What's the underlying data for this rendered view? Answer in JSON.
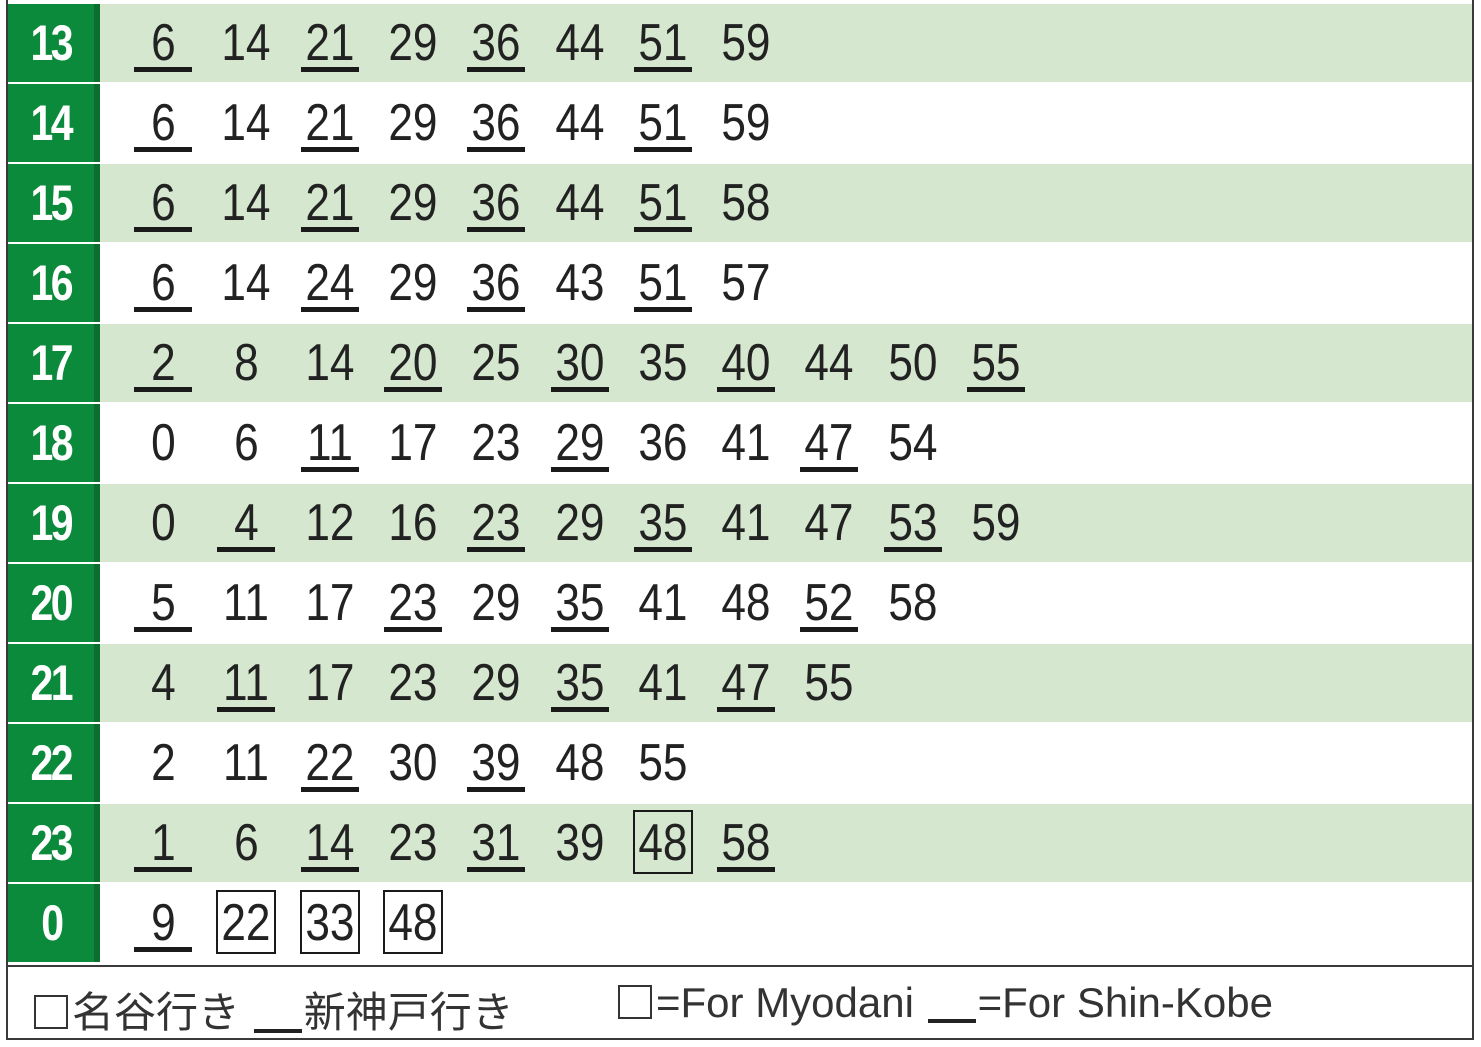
{
  "colors": {
    "hour_bg": "#0a8a3a",
    "shaded_row": "#d5e8cf",
    "text": "#222222"
  },
  "rows": [
    {
      "hour": "13",
      "minutes": [
        {
          "m": "6",
          "dest": "shinkobe"
        },
        {
          "m": "14",
          "dest": ""
        },
        {
          "m": "21",
          "dest": "shinkobe"
        },
        {
          "m": "29",
          "dest": ""
        },
        {
          "m": "36",
          "dest": "shinkobe"
        },
        {
          "m": "44",
          "dest": ""
        },
        {
          "m": "51",
          "dest": "shinkobe"
        },
        {
          "m": "59",
          "dest": ""
        }
      ]
    },
    {
      "hour": "14",
      "minutes": [
        {
          "m": "6",
          "dest": "shinkobe"
        },
        {
          "m": "14",
          "dest": ""
        },
        {
          "m": "21",
          "dest": "shinkobe"
        },
        {
          "m": "29",
          "dest": ""
        },
        {
          "m": "36",
          "dest": "shinkobe"
        },
        {
          "m": "44",
          "dest": ""
        },
        {
          "m": "51",
          "dest": "shinkobe"
        },
        {
          "m": "59",
          "dest": ""
        }
      ]
    },
    {
      "hour": "15",
      "minutes": [
        {
          "m": "6",
          "dest": "shinkobe"
        },
        {
          "m": "14",
          "dest": ""
        },
        {
          "m": "21",
          "dest": "shinkobe"
        },
        {
          "m": "29",
          "dest": ""
        },
        {
          "m": "36",
          "dest": "shinkobe"
        },
        {
          "m": "44",
          "dest": ""
        },
        {
          "m": "51",
          "dest": "shinkobe"
        },
        {
          "m": "58",
          "dest": ""
        }
      ]
    },
    {
      "hour": "16",
      "minutes": [
        {
          "m": "6",
          "dest": "shinkobe"
        },
        {
          "m": "14",
          "dest": ""
        },
        {
          "m": "24",
          "dest": "shinkobe"
        },
        {
          "m": "29",
          "dest": ""
        },
        {
          "m": "36",
          "dest": "shinkobe"
        },
        {
          "m": "43",
          "dest": ""
        },
        {
          "m": "51",
          "dest": "shinkobe"
        },
        {
          "m": "57",
          "dest": ""
        }
      ]
    },
    {
      "hour": "17",
      "minutes": [
        {
          "m": "2",
          "dest": "shinkobe"
        },
        {
          "m": "8",
          "dest": ""
        },
        {
          "m": "14",
          "dest": ""
        },
        {
          "m": "20",
          "dest": "shinkobe"
        },
        {
          "m": "25",
          "dest": ""
        },
        {
          "m": "30",
          "dest": "shinkobe"
        },
        {
          "m": "35",
          "dest": ""
        },
        {
          "m": "40",
          "dest": "shinkobe"
        },
        {
          "m": "44",
          "dest": ""
        },
        {
          "m": "50",
          "dest": ""
        },
        {
          "m": "55",
          "dest": "shinkobe"
        }
      ]
    },
    {
      "hour": "18",
      "minutes": [
        {
          "m": "0",
          "dest": ""
        },
        {
          "m": "6",
          "dest": ""
        },
        {
          "m": "11",
          "dest": "shinkobe"
        },
        {
          "m": "17",
          "dest": ""
        },
        {
          "m": "23",
          "dest": ""
        },
        {
          "m": "29",
          "dest": "shinkobe"
        },
        {
          "m": "36",
          "dest": ""
        },
        {
          "m": "41",
          "dest": ""
        },
        {
          "m": "47",
          "dest": "shinkobe"
        },
        {
          "m": "54",
          "dest": ""
        }
      ]
    },
    {
      "hour": "19",
      "minutes": [
        {
          "m": "0",
          "dest": ""
        },
        {
          "m": "4",
          "dest": "shinkobe"
        },
        {
          "m": "12",
          "dest": ""
        },
        {
          "m": "16",
          "dest": ""
        },
        {
          "m": "23",
          "dest": "shinkobe"
        },
        {
          "m": "29",
          "dest": ""
        },
        {
          "m": "35",
          "dest": "shinkobe"
        },
        {
          "m": "41",
          "dest": ""
        },
        {
          "m": "47",
          "dest": ""
        },
        {
          "m": "53",
          "dest": "shinkobe"
        },
        {
          "m": "59",
          "dest": ""
        }
      ]
    },
    {
      "hour": "20",
      "minutes": [
        {
          "m": "5",
          "dest": "shinkobe"
        },
        {
          "m": "11",
          "dest": ""
        },
        {
          "m": "17",
          "dest": ""
        },
        {
          "m": "23",
          "dest": "shinkobe"
        },
        {
          "m": "29",
          "dest": ""
        },
        {
          "m": "35",
          "dest": "shinkobe"
        },
        {
          "m": "41",
          "dest": ""
        },
        {
          "m": "48",
          "dest": ""
        },
        {
          "m": "52",
          "dest": "shinkobe"
        },
        {
          "m": "58",
          "dest": ""
        }
      ]
    },
    {
      "hour": "21",
      "minutes": [
        {
          "m": "4",
          "dest": ""
        },
        {
          "m": "11",
          "dest": "shinkobe"
        },
        {
          "m": "17",
          "dest": ""
        },
        {
          "m": "23",
          "dest": ""
        },
        {
          "m": "29",
          "dest": ""
        },
        {
          "m": "35",
          "dest": "shinkobe"
        },
        {
          "m": "41",
          "dest": ""
        },
        {
          "m": "47",
          "dest": "shinkobe"
        },
        {
          "m": "55",
          "dest": ""
        }
      ]
    },
    {
      "hour": "22",
      "minutes": [
        {
          "m": "2",
          "dest": ""
        },
        {
          "m": "11",
          "dest": ""
        },
        {
          "m": "22",
          "dest": "shinkobe"
        },
        {
          "m": "30",
          "dest": ""
        },
        {
          "m": "39",
          "dest": "shinkobe"
        },
        {
          "m": "48",
          "dest": ""
        },
        {
          "m": "55",
          "dest": ""
        }
      ]
    },
    {
      "hour": "23",
      "minutes": [
        {
          "m": "1",
          "dest": "shinkobe"
        },
        {
          "m": "6",
          "dest": ""
        },
        {
          "m": "14",
          "dest": "shinkobe"
        },
        {
          "m": "23",
          "dest": ""
        },
        {
          "m": "31",
          "dest": "shinkobe"
        },
        {
          "m": "39",
          "dest": ""
        },
        {
          "m": "48",
          "dest": "myodani"
        },
        {
          "m": "58",
          "dest": "shinkobe"
        }
      ]
    },
    {
      "hour": "0",
      "minutes": [
        {
          "m": "9",
          "dest": "shinkobe"
        },
        {
          "m": "22",
          "dest": "myodani"
        },
        {
          "m": "33",
          "dest": "myodani"
        },
        {
          "m": "48",
          "dest": "myodani"
        }
      ]
    }
  ],
  "legend": {
    "jp_myodani": "名谷行き",
    "jp_shinkobe": "新神戸行き",
    "en_myodani": "=For Myodani",
    "en_shinkobe": "=For Shin-Kobe"
  }
}
